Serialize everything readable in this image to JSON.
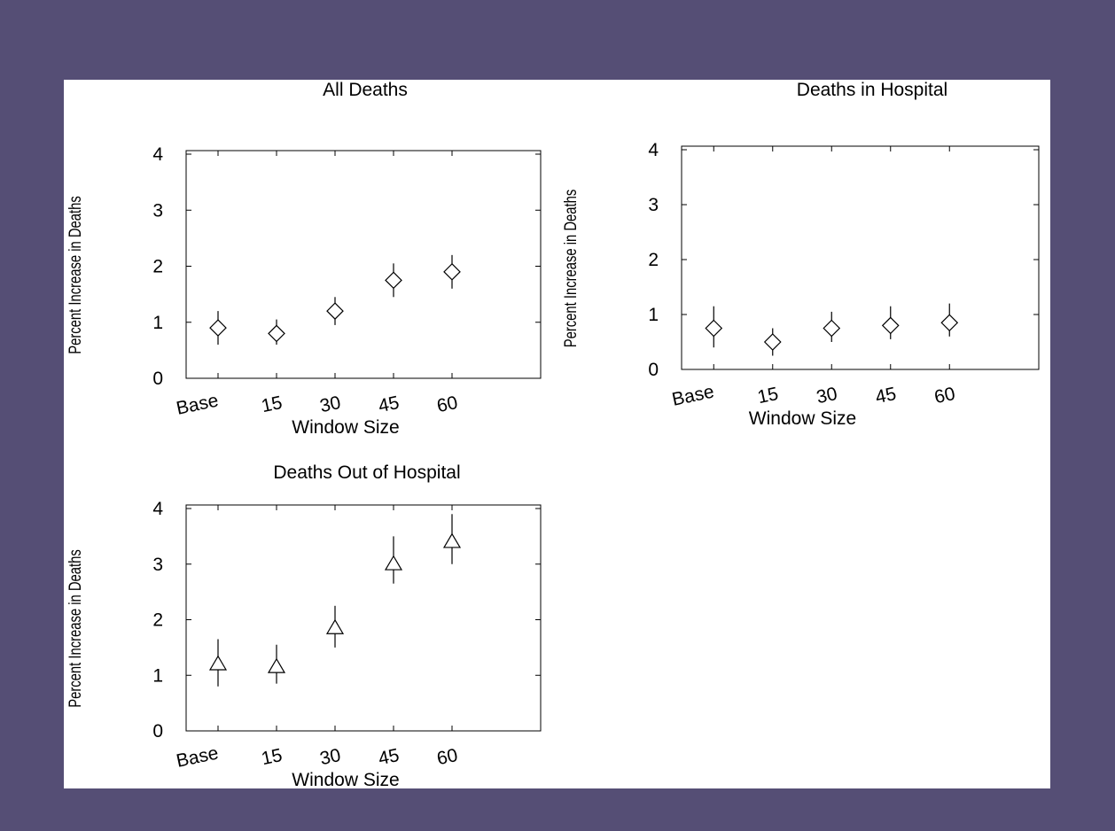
{
  "slide": {
    "background_color": "#554e75",
    "panel_color": "#ffffff"
  },
  "chart_data": [
    {
      "type": "scatter",
      "title": "All Deaths",
      "xlabel": "Window Size",
      "ylabel": "Percent Increase in Deaths",
      "categories": [
        "Base",
        "15",
        "30",
        "45",
        "60"
      ],
      "marker": "diamond",
      "values": [
        0.9,
        0.8,
        1.2,
        1.75,
        1.9
      ],
      "error_low": [
        0.6,
        0.6,
        0.95,
        1.45,
        1.6
      ],
      "error_high": [
        1.2,
        1.05,
        1.45,
        2.05,
        2.2
      ],
      "ylim": [
        0,
        4
      ],
      "yticks": [
        "0",
        "1",
        "2",
        "3",
        "4"
      ],
      "grid": false
    },
    {
      "type": "scatter",
      "title": "Deaths in Hospital",
      "xlabel": "Window Size",
      "ylabel": "Percent Increase in Deaths",
      "categories": [
        "Base",
        "15",
        "30",
        "45",
        "60"
      ],
      "marker": "diamond",
      "values": [
        0.75,
        0.5,
        0.75,
        0.8,
        0.85
      ],
      "error_low": [
        0.4,
        0.25,
        0.5,
        0.55,
        0.6
      ],
      "error_high": [
        1.15,
        0.75,
        1.05,
        1.15,
        1.2
      ],
      "ylim": [
        0,
        4
      ],
      "yticks": [
        "0",
        "1",
        "2",
        "3",
        "4"
      ],
      "grid": false
    },
    {
      "type": "scatter",
      "title": "Deaths Out of Hospital",
      "xlabel": "Window Size",
      "ylabel": "Percent Increase in Deaths",
      "categories": [
        "Base",
        "15",
        "30",
        "45",
        "60"
      ],
      "marker": "triangle",
      "values": [
        1.2,
        1.15,
        1.85,
        3.0,
        3.4
      ],
      "error_low": [
        0.8,
        0.85,
        1.5,
        2.65,
        3.0
      ],
      "error_high": [
        1.65,
        1.55,
        2.25,
        3.5,
        3.9
      ],
      "ylim": [
        0,
        4
      ],
      "yticks": [
        "0",
        "1",
        "2",
        "3",
        "4"
      ],
      "grid": false
    }
  ]
}
